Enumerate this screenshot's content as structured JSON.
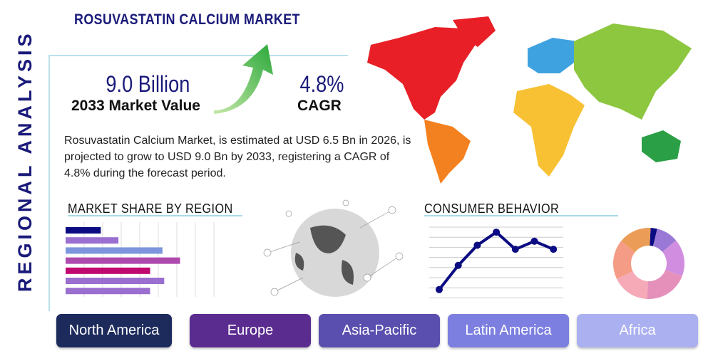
{
  "title": "ROSUVASTATIN CALCIUM MARKET",
  "side_label": "REGIONAL ANALYSIS",
  "market_value": {
    "value": "9.0 Billion",
    "label": "2033 Market Value"
  },
  "cagr": {
    "value": "4.8%",
    "label": "CAGR"
  },
  "description": "Rosuvastatin Calcium Market, is estimated at USD 6.5 Bn in 2026, is projected to grow to USD 9.0 Bn by 2033, registering a CAGR of 4.8% during the forecast period.",
  "sections": {
    "share": "MARKET SHARE BY REGION",
    "behavior": "CONSUMER BEHAVIOR"
  },
  "regions": [
    "North America",
    "Europe",
    "Asia-Pacific",
    "Latin America",
    "Africa"
  ],
  "region_colors": [
    "#1c2a5c",
    "#5b2c8f",
    "#5a4fae",
    "#7c7fe0",
    "#aab0f0"
  ],
  "chart_data": [
    {
      "type": "bar",
      "orientation": "horizontal",
      "values": [
        2,
        3,
        5.5,
        6.5,
        4.8,
        5.6,
        4.8
      ],
      "colors": [
        "#0b0b82",
        "#9a6fd0",
        "#7c95dd",
        "#ad4aae",
        "#c1086e",
        "#9a6fd0",
        "#9a6fd0"
      ],
      "xlim": [
        0,
        8
      ],
      "grid": true
    },
    {
      "type": "line",
      "values": [
        0.8,
        3.2,
        5.2,
        6.5,
        4.8,
        5.6,
        4.8
      ],
      "ylim": [
        0,
        7
      ],
      "grid": true,
      "color": "#0b0b82"
    },
    {
      "type": "pie",
      "donut": true,
      "values": [
        3,
        10,
        17,
        20,
        17,
        18,
        15
      ],
      "colors": [
        "#0b0b82",
        "#9a78d6",
        "#d18ee0",
        "#e590bb",
        "#f6aab8",
        "#f49c86",
        "#eb9d58"
      ]
    }
  ]
}
